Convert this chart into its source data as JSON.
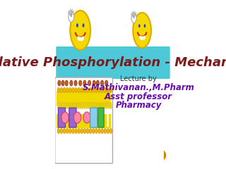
{
  "background_color": "#ffffff",
  "title_text": "Oxidative Phosphorylation - Mechanism",
  "title_bg_color": "#4dc8d8",
  "title_text_color": "#7b1a1a",
  "title_fontsize": 13,
  "lecture_by": "Lecture by",
  "name": "S.Mathivanan.,M.Pharm",
  "role": "Asst professor",
  "dept": "Pharmacy",
  "text_color_name": "#6a0dad",
  "text_color_role": "#6a0dad",
  "text_color_dept": "#6a0dad",
  "text_color_lectureby": "#333333",
  "name_fontsize": 8.5,
  "role_fontsize": 8.5,
  "dept_fontsize": 8.5,
  "lectureby_fontsize": 7
}
